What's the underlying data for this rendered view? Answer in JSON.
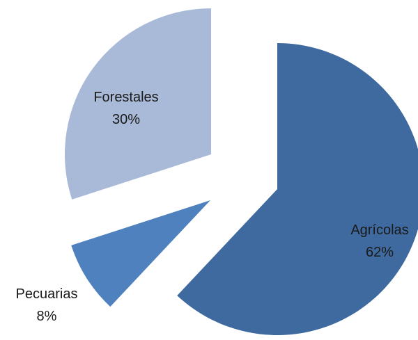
{
  "chart_data": {
    "type": "pie",
    "exploded": true,
    "start_angle_deg": 0,
    "direction": "clockwise",
    "slices": [
      {
        "label": "Agrícolas",
        "value": 62,
        "pct_label": "62%",
        "color": "#3f6a9f"
      },
      {
        "label": "Pecuarias",
        "value": 8,
        "pct_label": "8%",
        "color": "#4e81bd"
      },
      {
        "label": "Forestales",
        "value": 30,
        "pct_label": "30%",
        "color": "#a9b9d8"
      }
    ]
  }
}
